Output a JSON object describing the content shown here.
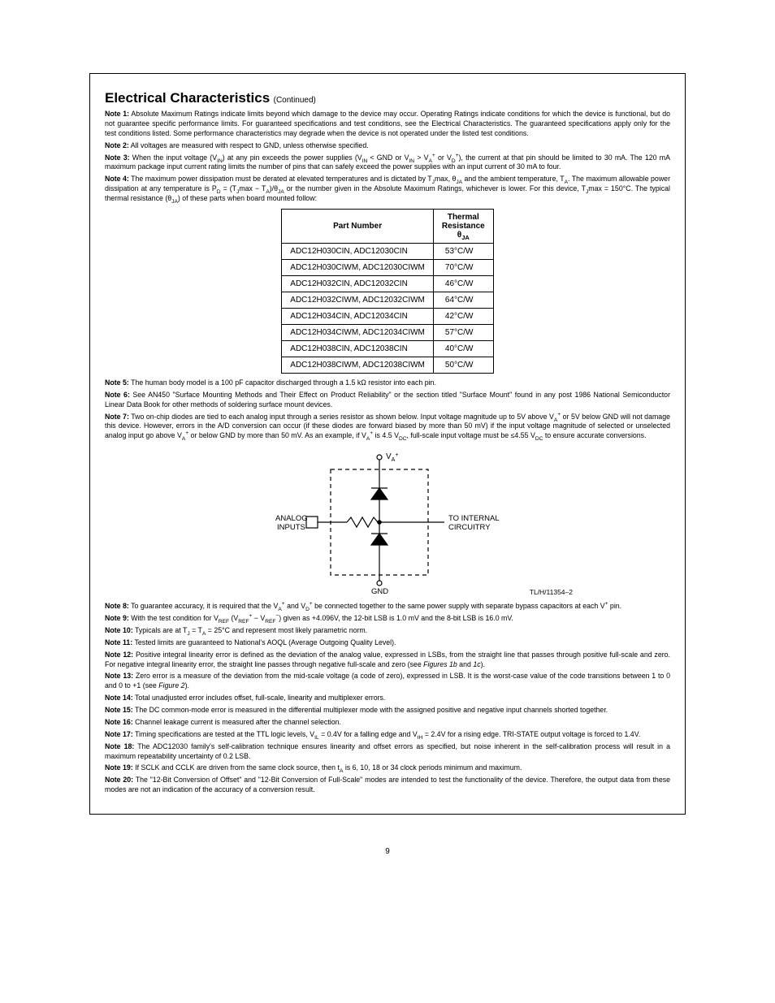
{
  "title": {
    "main": "Electrical Characteristics",
    "cont": "(Continued)"
  },
  "notes_top": [
    {
      "label": "Note 1:",
      "text": "Absolute Maximum Ratings indicate limits beyond which damage to the device may occur. Operating Ratings indicate conditions for which the device is functional, but do not guarantee specific performance limits. For guaranteed specifications and test conditions, see the Electrical Characteristics. The guaranteed specifications apply only for the test conditions listed. Some performance characteristics may degrade when the device is not operated under the listed test conditions."
    },
    {
      "label": "Note 2:",
      "text": "All voltages are measured with respect to GND, unless otherwise specified."
    },
    {
      "label": "Note 3:",
      "text": "When the input voltage (V<sub>IN</sub>) at any pin exceeds the power supplies (V<sub>IN</sub> < GND or V<sub>IN</sub> > V<sub>A</sub><sup>+</sup> or V<sub>D</sub><sup>+</sup>), the current at that pin should be limited to 30 mA. The 120 mA maximum package input current rating limits the number of pins that can safely exceed the power supplies with an input current of 30 mA to four."
    },
    {
      "label": "Note 4:",
      "text": "The maximum power dissipation must be derated at elevated temperatures and is dictated by T<sub>J</sub>max, θ<sub>JA</sub> and the ambient temperature, T<sub>A</sub>. The maximum allowable power dissipation at any temperature is P<sub>D</sub> = (T<sub>J</sub>max − T<sub>A</sub>)/θ<sub>JA</sub> or the number given in the Absolute Maximum Ratings, whichever is lower. For this device, T<sub>J</sub>max = 150°C. The typical thermal resistance (θ<sub>JA</sub>) of these parts when board mounted follow:"
    }
  ],
  "table": {
    "headers": {
      "col1": "Part Number",
      "col2_l1": "Thermal",
      "col2_l2": "Resistance",
      "col2_l3": "θ",
      "col2_l3_sub": "JA"
    },
    "rows": [
      {
        "part": "ADC12H030CIN, ADC12030CIN",
        "res": "53°C/W"
      },
      {
        "part": "ADC12H030CIWM, ADC12030CIWM",
        "res": "70°C/W"
      },
      {
        "part": "ADC12H032CIN, ADC12032CIN",
        "res": "46°C/W"
      },
      {
        "part": "ADC12H032CIWM, ADC12032CIWM",
        "res": "64°C/W"
      },
      {
        "part": "ADC12H034CIN, ADC12034CIN",
        "res": "42°C/W"
      },
      {
        "part": "ADC12H034CIWM, ADC12034CIWM",
        "res": "57°C/W"
      },
      {
        "part": "ADC12H038CIN, ADC12038CIN",
        "res": "40°C/W"
      },
      {
        "part": "ADC12H038CIWM, ADC12038CIWM",
        "res": "50°C/W"
      }
    ]
  },
  "notes_mid": [
    {
      "label": "Note 5:",
      "text": "The human body model is a 100 pF capacitor discharged through a 1.5 kΩ resistor into each pin."
    },
    {
      "label": "Note 6:",
      "text": "See AN450 \"Surface Mounting Methods and Their Effect on Product Reliability\" or the section titled \"Surface Mount\" found in any post 1986 National Semiconductor Linear Data Book for other methods of soldering surface mount devices."
    },
    {
      "label": "Note 7:",
      "text": "Two on-chip diodes are tied to each analog input through a series resistor as shown below. Input voltage magnitude up to 5V above V<sub>A</sub><sup>+</sup> or 5V below GND will not damage this device. However, errors in the A/D conversion can occur (if these diodes are forward biased by more than 50 mV) if the input voltage magnitude of selected or unselected analog input go above V<sub>A</sub><sup>+</sup> or below GND by more than 50 mV. As an example, if V<sub>A</sub><sup>+</sup> is 4.5 V<sub>DC</sub>, full-scale input voltage must be ≤4.55 V<sub>DC</sub> to ensure accurate conversions."
    }
  ],
  "diagram": {
    "va_label": "V",
    "va_sub": "A",
    "va_sup": "+",
    "analog_l1": "ANALOG",
    "analog_l2": "INPUTS",
    "internal_l1": "TO INTERNAL",
    "internal_l2": "CIRCUITRY",
    "gnd": "GND",
    "caption": "TL/H/11354–2",
    "colors": {
      "stroke": "#000000",
      "bg": "#ffffff"
    }
  },
  "notes_bottom": [
    {
      "label": "Note 8:",
      "text": "To guarantee accuracy, it is required that the V<sub>A</sub><sup>+</sup> and V<sub>D</sub><sup>+</sup> be connected together to the same power supply with separate bypass capacitors at each V<sup>+</sup> pin."
    },
    {
      "label": "Note 9:",
      "text": "With the test condition for V<sub>REF</sub> (V<sub>REF</sub><sup>+</sup> − V<sub>REF</sub><sup>−</sup>) given as +4.096V, the 12-bit LSB is 1.0 mV and the 8-bit LSB is 16.0 mV."
    },
    {
      "label": "Note 10:",
      "text": "Typicals are at T<sub>J</sub> = T<sub>A</sub> = 25°C and represent most likely parametric norm."
    },
    {
      "label": "Note 11:",
      "text": "Tested limits are guaranteed to National's AOQL (Average Outgoing Quality Level)."
    },
    {
      "label": "Note 12:",
      "text": "Positive integral linearity error is defined as the deviation of the analog value, expressed in LSBs, from the straight line that passes through positive full-scale and zero. For negative integral linearity error, the straight line passes through negative full-scale and zero (see <i>Figures 1b</i> and <i>1c</i>)."
    },
    {
      "label": "Note 13:",
      "text": "Zero error is a measure of the deviation from the mid-scale voltage (a code of zero), expressed in LSB. It is the worst-case value of the code transitions between 1 to 0 and 0 to +1 (see <i>Figure 2</i>)."
    },
    {
      "label": "Note 14:",
      "text": "Total unadjusted error includes offset, full-scale, linearity and multiplexer errors."
    },
    {
      "label": "Note 15:",
      "text": "The DC common-mode error is measured in the differential multiplexer mode with the assigned positive and negative input channels shorted together."
    },
    {
      "label": "Note 16:",
      "text": "Channel leakage current is measured after the channel selection."
    },
    {
      "label": "Note 17:",
      "text": "Timing specifications are tested at the TTL logic levels, V<sub>IL</sub> = 0.4V for a falling edge and V<sub>IH</sub> = 2.4V for a rising edge. TRI-STATE output voltage is forced to 1.4V."
    },
    {
      "label": "Note 18:",
      "text": "The ADC12030 family's self-calibration technique ensures linearity and offset errors as specified, but noise inherent in the self-calibration process will result in a maximum repeatability uncertainty of 0.2 LSB."
    },
    {
      "label": "Note 19:",
      "text": "If SCLK and CCLK are driven from the same clock source, then t<sub>A</sub> is 6, 10, 18 or 34 clock periods minimum and maximum."
    },
    {
      "label": "Note 20:",
      "text": "The \"12-Bit Conversion of Offset\" and \"12-Bit Conversion of Full-Scale\" modes are intended to test the functionality of the device. Therefore, the output data from these modes are not an indication of the accuracy of a conversion result."
    }
  ],
  "page_number": "9"
}
